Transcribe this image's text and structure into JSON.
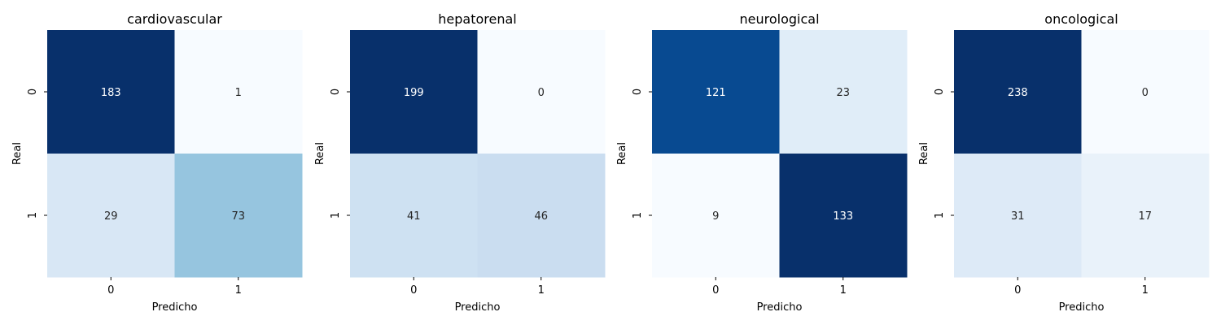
{
  "chart_data": [
    {
      "type": "heatmap",
      "title": "cardiovascular",
      "xlabel": "Predicho",
      "ylabel": "Real",
      "x_ticks": [
        "0",
        "1"
      ],
      "y_ticks": [
        "0",
        "1"
      ],
      "matrix": [
        [
          183,
          1
        ],
        [
          29,
          73
        ]
      ],
      "colormap": "Blues"
    },
    {
      "type": "heatmap",
      "title": "hepatorenal",
      "xlabel": "Predicho",
      "ylabel": "Real",
      "x_ticks": [
        "0",
        "1"
      ],
      "y_ticks": [
        "0",
        "1"
      ],
      "matrix": [
        [
          199,
          0
        ],
        [
          41,
          46
        ]
      ],
      "colormap": "Blues"
    },
    {
      "type": "heatmap",
      "title": "neurological",
      "xlabel": "Predicho",
      "ylabel": "Real",
      "x_ticks": [
        "0",
        "1"
      ],
      "y_ticks": [
        "0",
        "1"
      ],
      "matrix": [
        [
          121,
          23
        ],
        [
          9,
          133
        ]
      ],
      "colormap": "Blues"
    },
    {
      "type": "heatmap",
      "title": "oncological",
      "xlabel": "Predicho",
      "ylabel": "Real",
      "x_ticks": [
        "0",
        "1"
      ],
      "y_ticks": [
        "0",
        "1"
      ],
      "matrix": [
        [
          238,
          0
        ],
        [
          31,
          17
        ]
      ],
      "colormap": "Blues"
    }
  ]
}
